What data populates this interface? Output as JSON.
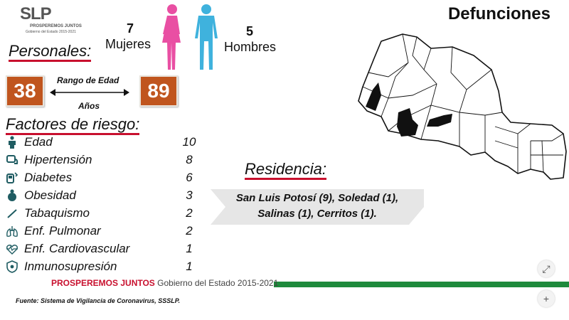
{
  "logo": {
    "mark": "SLP",
    "line1": "PROSPEREMOS JUNTOS",
    "line2": "Gobierno del Estado 2015-2021"
  },
  "title": "Defunciones",
  "people": {
    "women": {
      "count": "7",
      "label": "Mujeres",
      "color": "#e94fa3"
    },
    "men": {
      "count": "5",
      "label": "Hombres",
      "color": "#3fb2dd"
    }
  },
  "personal": {
    "heading": "Personales:",
    "age_min": "38",
    "age_max": "89",
    "range_label": "Rango de Edad",
    "units": "Años"
  },
  "risk": {
    "heading": "Factores de riesgo:",
    "items": [
      {
        "name": "Edad",
        "count": "10",
        "icon": "elderly-icon"
      },
      {
        "name": "Hipertensión",
        "count": "8",
        "icon": "blood-pressure-icon"
      },
      {
        "name": "Diabetes",
        "count": "6",
        "icon": "glucometer-icon"
      },
      {
        "name": "Obesidad",
        "count": "3",
        "icon": "obesity-icon"
      },
      {
        "name": "Tabaquismo",
        "count": "2",
        "icon": "cigarette-icon"
      },
      {
        "name": "Enf. Pulmonar",
        "count": "2",
        "icon": "lungs-icon"
      },
      {
        "name": "Enf. Cardiovascular",
        "count": "1",
        "icon": "heartbeat-icon"
      },
      {
        "name": "Inmunosupresión",
        "count": "1",
        "icon": "shield-icon"
      }
    ]
  },
  "residence": {
    "heading": "Residencia:",
    "line1": "San Luis Potosí (9), Soledad (1),",
    "line2": "Salinas (1), Cerritos (1)."
  },
  "footer": {
    "prosperemos": "PROSPEREMOS JUNTOS",
    "gobierno": "Gobierno del Estado 2015-2021",
    "source": "Fuente: Sistema de Vigilancia de Coronavirus, SSSLP."
  },
  "colors": {
    "accent_red": "#c8102e",
    "age_box": "#c0551e",
    "footer_green": "#1e8a3c"
  }
}
